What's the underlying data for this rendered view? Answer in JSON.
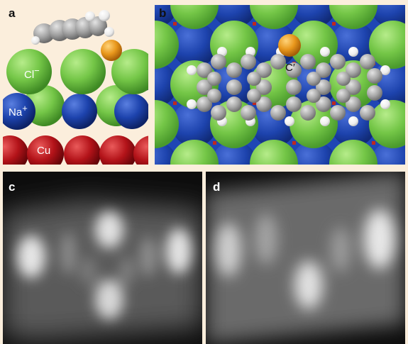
{
  "panels": {
    "a": {
      "label": "a",
      "annotations": {
        "cl": "Cl",
        "cl_charge": "−",
        "na": "Na",
        "na_charge": "+",
        "cu": "Cu"
      }
    },
    "b": {
      "label": "b",
      "annotations": {
        "c_prime": "C′"
      }
    },
    "c": {
      "label": "c"
    },
    "d": {
      "label": "d"
    }
  },
  "colors": {
    "background": "#fbeedc",
    "chlorine": "#7ccc4c",
    "sodium": "#1f46b4",
    "copper": "#b3161e",
    "gold": "#e89a20",
    "carbon": "#9c9c9c",
    "hydrogen": "#ffffff"
  }
}
